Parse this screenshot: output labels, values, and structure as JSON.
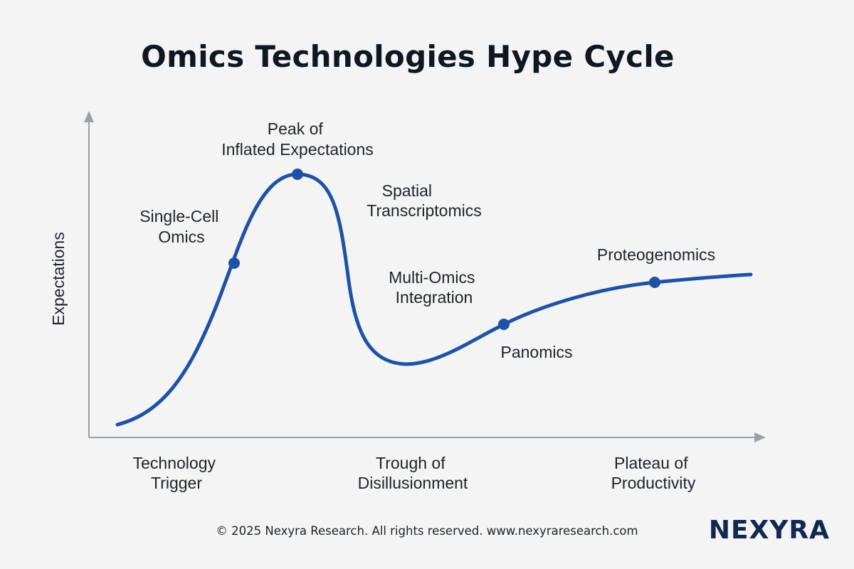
{
  "title": "Omics Technologies Hype Cycle",
  "axes": {
    "y_label": "Expectations"
  },
  "phases": [
    {
      "lines": [
        "Technology",
        "Trigger"
      ]
    },
    {
      "lines": [
        "Peak of",
        "Inflated Expectations"
      ]
    },
    {
      "lines": [
        "Trough of",
        "Disillusionment"
      ]
    },
    {
      "lines": [
        "Plateau of",
        "Productivity"
      ]
    }
  ],
  "technologies": [
    {
      "lines": [
        "Single-Cell",
        "Omics"
      ],
      "marker": true
    },
    {
      "lines": [
        "Spatial",
        "Transcriptomics"
      ],
      "marker": false
    },
    {
      "lines": [
        "Multi-Omics",
        "Integration"
      ],
      "marker": false
    },
    {
      "lines": [
        "Panomics"
      ],
      "marker": true
    },
    {
      "lines": [
        "Proteogenomics"
      ],
      "marker": true
    }
  ],
  "peak_marker": true,
  "footer": "© 2025 Nexyra Research. All rights reserved. www.nexyraresearch.com",
  "logo": "NEXYRA",
  "colors": {
    "curve": "#1f52a6",
    "marker": "#1f52a6",
    "axis": "#9aa0a6",
    "logo": "#13284f"
  }
}
